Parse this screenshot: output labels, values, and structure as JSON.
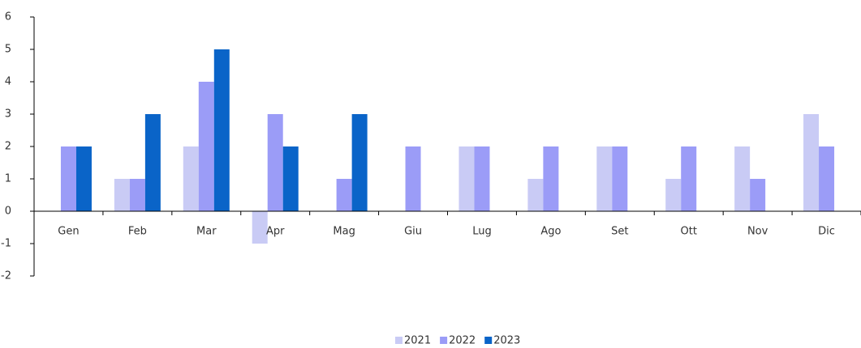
{
  "chart_data": {
    "type": "bar",
    "categories": [
      "Gen",
      "Feb",
      "Mar",
      "Apr",
      "Mag",
      "Giu",
      "Lug",
      "Ago",
      "Set",
      "Ott",
      "Nov",
      "Dic"
    ],
    "series": [
      {
        "name": "2021",
        "color": "#c9cbf5",
        "values": [
          0,
          1,
          2,
          -1,
          0,
          0,
          2,
          1,
          2,
          1,
          2,
          3
        ]
      },
      {
        "name": "2022",
        "color": "#9b9cf7",
        "values": [
          2,
          1,
          4,
          3,
          1,
          2,
          2,
          2,
          2,
          2,
          1,
          2
        ]
      },
      {
        "name": "2023",
        "color": "#0a64c8",
        "values": [
          2,
          3,
          5,
          2,
          3,
          null,
          null,
          null,
          null,
          null,
          null,
          null
        ]
      }
    ],
    "ylim": [
      -2,
      6
    ],
    "yticks": [
      -2,
      -1,
      0,
      1,
      2,
      3,
      4,
      5,
      6
    ],
    "legend": "bottom"
  }
}
